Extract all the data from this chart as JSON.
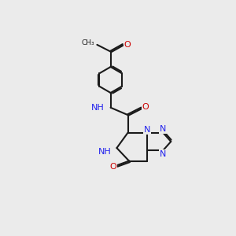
{
  "bg": "#ebebeb",
  "BC": "#1a1a1a",
  "NC": "#2222ee",
  "OC": "#cc0000",
  "lw": 1.5,
  "lw_thin": 1.0,
  "fs": 8.0,
  "fig_w": 3.0,
  "fig_h": 3.0,
  "dpi": 100,
  "xlim": [
    -0.5,
    5.5
  ],
  "ylim": [
    -0.5,
    9.0
  ]
}
